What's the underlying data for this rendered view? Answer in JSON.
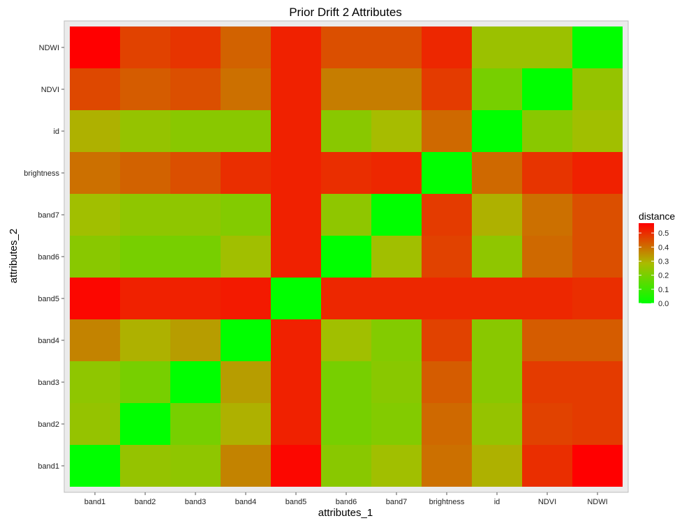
{
  "chart_data": {
    "type": "heatmap",
    "title": "Prior Drift 2 Attributes",
    "xlabel": "attributes_1",
    "ylabel": "attributes_2",
    "x_categories": [
      "band1",
      "band2",
      "band3",
      "band4",
      "band5",
      "band6",
      "band7",
      "brightness",
      "id",
      "NDVI",
      "NDWI"
    ],
    "y_categories": [
      "band1",
      "band2",
      "band3",
      "band4",
      "band5",
      "band6",
      "band7",
      "brightness",
      "id",
      "NDVI",
      "NDWI"
    ],
    "values": [
      [
        0.0,
        0.25,
        0.24,
        0.37,
        0.56,
        0.23,
        0.27,
        0.4,
        0.3,
        0.5,
        0.57
      ],
      [
        0.25,
        0.0,
        0.2,
        0.3,
        0.52,
        0.2,
        0.22,
        0.41,
        0.25,
        0.47,
        0.48
      ],
      [
        0.24,
        0.2,
        0.0,
        0.33,
        0.52,
        0.2,
        0.23,
        0.43,
        0.23,
        0.48,
        0.48
      ],
      [
        0.37,
        0.3,
        0.33,
        0.0,
        0.52,
        0.27,
        0.22,
        0.47,
        0.23,
        0.43,
        0.43
      ],
      [
        0.56,
        0.52,
        0.52,
        0.53,
        0.0,
        0.51,
        0.51,
        0.51,
        0.51,
        0.51,
        0.5
      ],
      [
        0.23,
        0.2,
        0.2,
        0.27,
        0.52,
        0.0,
        0.27,
        0.47,
        0.24,
        0.41,
        0.45
      ],
      [
        0.27,
        0.24,
        0.24,
        0.22,
        0.52,
        0.24,
        0.0,
        0.48,
        0.3,
        0.4,
        0.45
      ],
      [
        0.4,
        0.42,
        0.45,
        0.5,
        0.52,
        0.5,
        0.51,
        0.0,
        0.41,
        0.49,
        0.52
      ],
      [
        0.3,
        0.25,
        0.23,
        0.23,
        0.52,
        0.23,
        0.28,
        0.41,
        0.0,
        0.23,
        0.27
      ],
      [
        0.46,
        0.43,
        0.45,
        0.4,
        0.52,
        0.38,
        0.38,
        0.48,
        0.2,
        0.0,
        0.25
      ],
      [
        0.57,
        0.47,
        0.49,
        0.42,
        0.52,
        0.45,
        0.45,
        0.51,
        0.26,
        0.26,
        0.0
      ]
    ],
    "color_scale": {
      "title": "distance",
      "low_color": "#00ff00",
      "mid_color": "#aabb00",
      "high_color": "#ff0000",
      "min": 0.0,
      "max": 0.57,
      "ticks": [
        0.0,
        0.1,
        0.2,
        0.3,
        0.4,
        0.5
      ],
      "tick_labels": [
        "0.0",
        "0.1",
        "0.2",
        "0.3",
        "0.4",
        "0.5"
      ]
    },
    "panel_background": "#ebebeb",
    "grid": true,
    "legend_position": "right"
  }
}
